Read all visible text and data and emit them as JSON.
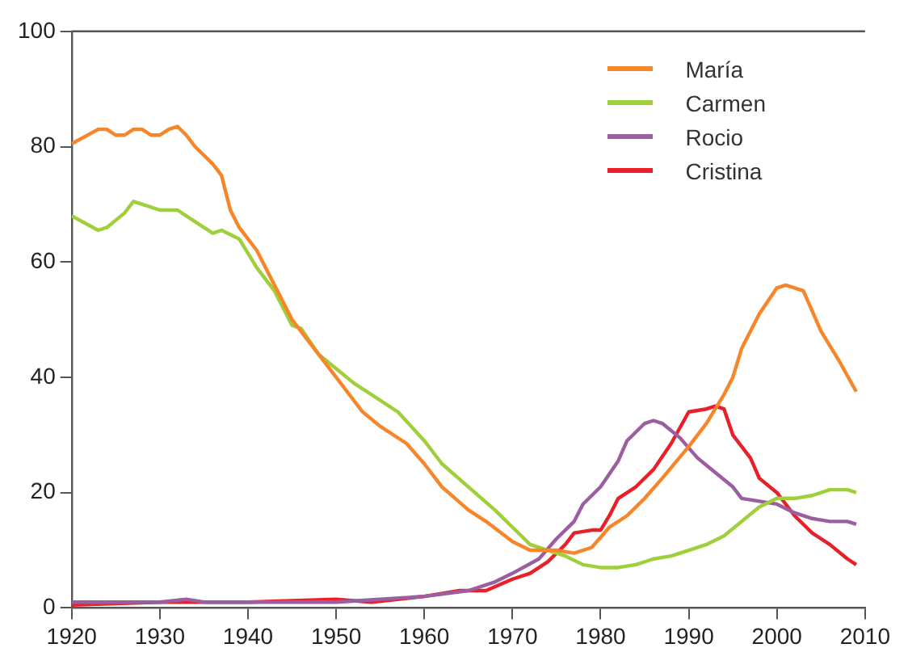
{
  "chart_data": {
    "type": "line",
    "xlim": [
      1920,
      2010
    ],
    "xticks": [
      1920,
      1930,
      1940,
      1950,
      1960,
      1970,
      1980,
      1990,
      2000,
      2010
    ],
    "ylim": [
      0,
      100
    ],
    "yticks": [
      0,
      20,
      40,
      60,
      80,
      100
    ],
    "grid": false,
    "legend": "top right",
    "marker": "none",
    "line_style": "solid",
    "series": [
      {
        "name": "María",
        "color": "#f7862a",
        "x": [
          1920,
          1923,
          1924,
          1925,
          1926,
          1927,
          1928,
          1929,
          1930,
          1931,
          1932,
          1933,
          1934,
          1936,
          1937,
          1938,
          1939,
          1940,
          1941,
          1943,
          1945,
          1947,
          1950,
          1953,
          1955,
          1958,
          1960,
          1962,
          1965,
          1967,
          1970,
          1972,
          1975,
          1977,
          1979,
          1981,
          1983,
          1985,
          1987,
          1990,
          1992,
          1994,
          1995,
          1996,
          1998,
          2000,
          2001,
          2002,
          2003,
          2005,
          2007,
          2009
        ],
        "values": [
          80.5,
          83,
          83,
          82,
          82,
          83,
          83,
          82,
          82,
          83,
          83.5,
          82,
          80,
          77,
          75,
          69,
          66,
          64,
          62,
          56,
          50,
          46,
          40,
          34,
          31.5,
          28.5,
          25,
          21,
          17,
          15,
          11.5,
          10,
          10,
          9.5,
          10.5,
          14,
          16,
          19,
          22.5,
          28,
          32,
          37,
          40,
          45,
          51,
          55.5,
          56,
          55.5,
          55,
          48,
          43,
          37.5
        ]
      },
      {
        "name": "Carmen",
        "color": "#9fcf3a",
        "x": [
          1920,
          1923,
          1924,
          1926,
          1927,
          1929,
          1930,
          1932,
          1934,
          1936,
          1937,
          1939,
          1941,
          1943,
          1945,
          1946,
          1948,
          1950,
          1952,
          1955,
          1957,
          1960,
          1962,
          1965,
          1968,
          1970,
          1972,
          1974,
          1976,
          1978,
          1980,
          1982,
          1984,
          1986,
          1988,
          1990,
          1992,
          1994,
          1996,
          1998,
          2000,
          2002,
          2004,
          2006,
          2008,
          2009
        ],
        "values": [
          68,
          65.5,
          66,
          68.5,
          70.5,
          69.5,
          69,
          69,
          67,
          65,
          65.5,
          64,
          59,
          55,
          49,
          48.5,
          44,
          41.5,
          39,
          36,
          34,
          29,
          25,
          21,
          17,
          14,
          11,
          10,
          9,
          7.5,
          7,
          7,
          7.5,
          8.5,
          9,
          10,
          11,
          12.5,
          15,
          17.5,
          19,
          19,
          19.5,
          20.5,
          20.5,
          20
        ]
      },
      {
        "name": "Rocio",
        "color": "#9b5ea0",
        "x": [
          1920,
          1930,
          1933,
          1935,
          1950,
          1955,
          1960,
          1965,
          1968,
          1970,
          1973,
          1975,
          1977,
          1978,
          1980,
          1982,
          1983,
          1985,
          1986,
          1987,
          1989,
          1991,
          1993,
          1995,
          1996,
          1998,
          2000,
          2002,
          2004,
          2006,
          2008,
          2009
        ],
        "values": [
          1,
          1,
          1.5,
          1,
          1,
          1.5,
          2,
          3,
          4.5,
          6,
          8.5,
          12,
          15,
          18,
          21,
          25.5,
          29,
          32,
          32.5,
          32,
          29.5,
          26,
          23.5,
          21,
          19,
          18.5,
          18,
          16.5,
          15.5,
          15,
          15,
          14.5
        ]
      },
      {
        "name": "Cristina",
        "color": "#e8202a",
        "x": [
          1920,
          1930,
          1940,
          1950,
          1954,
          1957,
          1960,
          1964,
          1967,
          1970,
          1972,
          1974,
          1976,
          1977,
          1979,
          1980,
          1981,
          1982,
          1984,
          1986,
          1988,
          1990,
          1992,
          1993,
          1994,
          1995,
          1997,
          1998,
          2000,
          2002,
          2004,
          2006,
          2008,
          2009
        ],
        "values": [
          0.5,
          1,
          1,
          1.5,
          1,
          1.5,
          2,
          3,
          3,
          5,
          6,
          8,
          11,
          13,
          13.5,
          13.5,
          16,
          19,
          21,
          24,
          28.5,
          34,
          34.5,
          35,
          34.5,
          30,
          26,
          22.5,
          20,
          16,
          13,
          11,
          8.5,
          7.5
        ]
      }
    ]
  }
}
